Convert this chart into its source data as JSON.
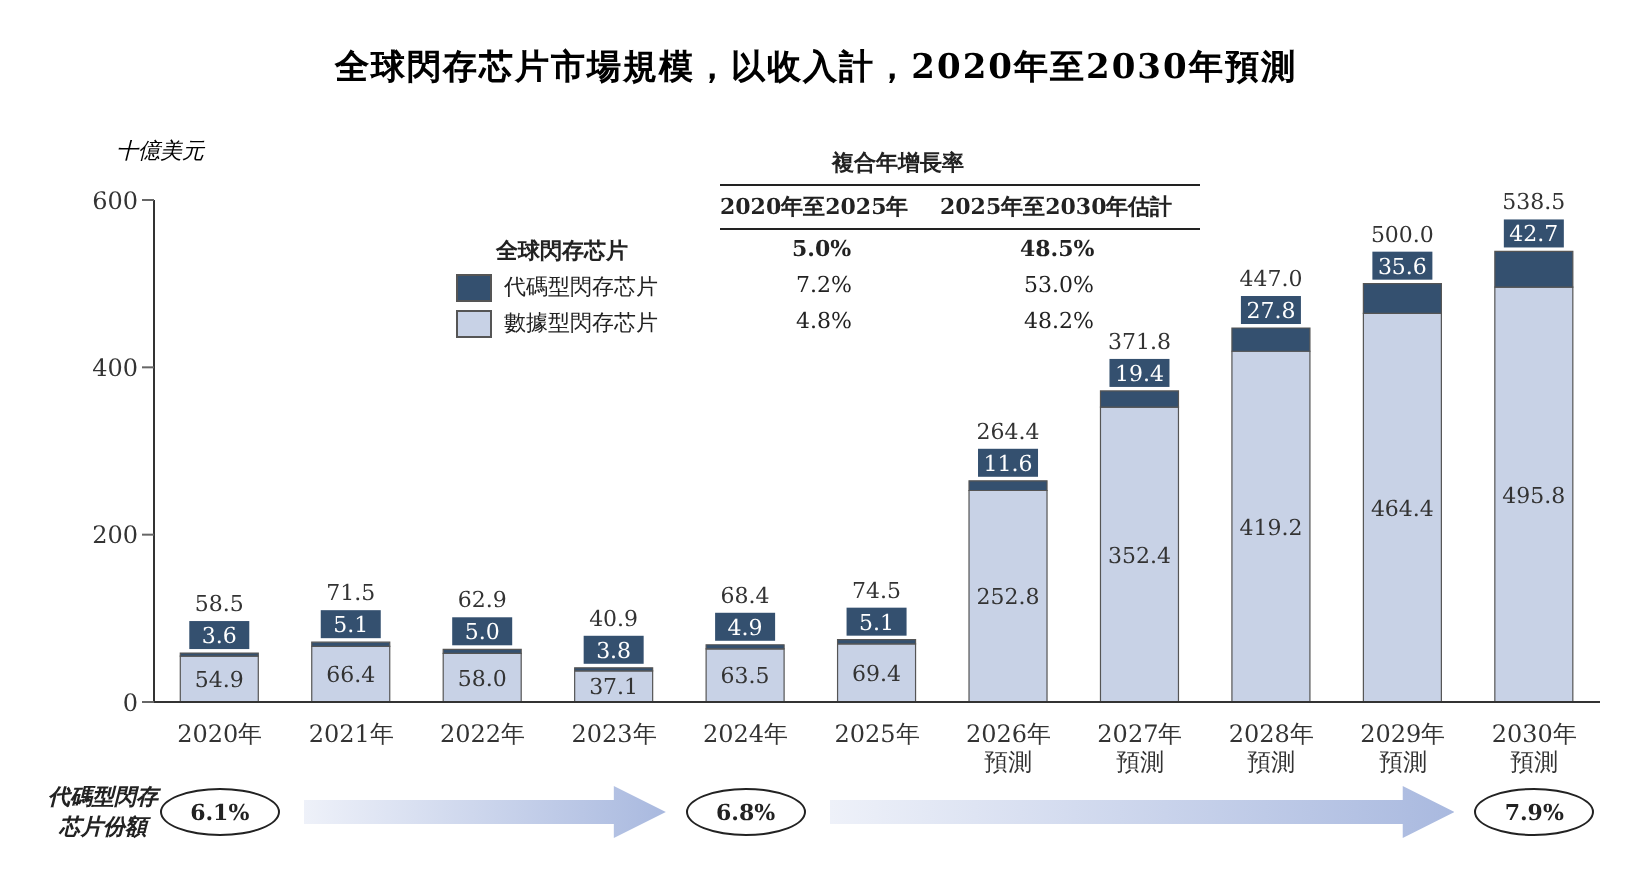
{
  "chart_data": {
    "type": "bar",
    "title": "全球閃存芯片市場規模，以收入計，2020年至2030年預測",
    "ylabel": "十億美元",
    "categories": [
      "2020年",
      "2021年",
      "2022年",
      "2023年",
      "2024年",
      "2025年",
      "2026年預測",
      "2027年預測",
      "2028年預測",
      "2029年預測",
      "2030年預測"
    ],
    "series": [
      {
        "name": "數據型閃存芯片",
        "color": "#c8d2e6",
        "values": [
          54.9,
          66.4,
          58.0,
          37.1,
          63.5,
          69.4,
          252.8,
          352.4,
          419.2,
          464.4,
          495.8
        ],
        "value_labels": [
          "54.9",
          "66.4",
          "58.0",
          "37.1",
          "63.5",
          "69.4",
          "252.8",
          "352.4",
          "419.2",
          "464.4",
          "495.8"
        ]
      },
      {
        "name": "代碼型閃存芯片",
        "color": "#34506f",
        "values": [
          3.6,
          5.1,
          5.0,
          3.8,
          4.9,
          5.1,
          11.6,
          19.4,
          27.8,
          35.6,
          42.7
        ],
        "value_labels": [
          "3.6",
          "5.1",
          "5.0",
          "3.8",
          "4.9",
          "5.1",
          "11.6",
          "19.4",
          "27.8",
          "35.6",
          "42.7"
        ]
      }
    ],
    "stacked": true,
    "totals": [
      "58.5",
      "71.5",
      "62.9",
      "40.9",
      "68.4",
      "74.5",
      "264.4",
      "371.8",
      "447.0",
      "500.0",
      "538.5"
    ],
    "ylim": [
      0,
      600
    ],
    "yticks": [
      0,
      200,
      400,
      600
    ],
    "legend": "top left",
    "annotations": [
      "複合年增長率",
      "2020年至2025年",
      "2025年至2030年估計",
      "全球閃存芯片",
      "5.0%",
      "48.5%",
      "7.2%",
      "53.0%",
      "4.8%",
      "48.2%",
      "代碼型閃存芯片份額",
      "6.1%",
      "6.8%",
      "7.9%"
    ]
  }
}
